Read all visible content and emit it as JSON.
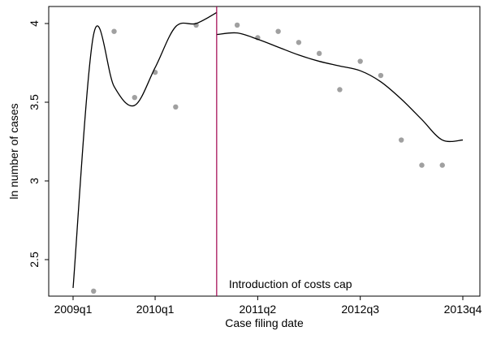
{
  "chart_data": {
    "type": "scatter",
    "xlabel": "Case filing date",
    "ylabel": "ln number of cases",
    "x_axis_type": "quarterly-date",
    "xlim": [
      "2009q1",
      "2013q4"
    ],
    "ylim": [
      2.3,
      4.1
    ],
    "x_ticks": [
      "2009q1",
      "2010q1",
      "2011q2",
      "2012q3",
      "2013q4"
    ],
    "y_ticks": [
      2.5,
      3,
      3.5,
      4
    ],
    "y_tick_labels": [
      "2.5",
      "3",
      "3.5",
      "4"
    ],
    "grid": false,
    "legend": "none",
    "annotation": {
      "text": "Introduction of costs cap",
      "x": "2010q4"
    },
    "series": [
      {
        "kind": "scatter",
        "color": "#a0a0a0",
        "x": [
          "2009q2",
          "2009q3",
          "2009q4",
          "2010q1",
          "2010q2",
          "2010q3",
          "2011q1",
          "2011q2",
          "2011q3",
          "2011q4",
          "2012q1",
          "2012q2",
          "2012q3",
          "2012q4",
          "2013q1",
          "2013q2",
          "2013q3"
        ],
        "y": [
          2.3,
          3.95,
          3.53,
          3.69,
          3.47,
          3.99,
          3.99,
          3.91,
          3.95,
          3.88,
          3.81,
          3.58,
          3.76,
          3.67,
          3.26,
          3.1,
          3.1
        ]
      },
      {
        "kind": "line",
        "color": "#000000",
        "segment": "pre",
        "x": [
          "2009q1",
          "2009q2",
          "2009q3",
          "2009q4",
          "2010q1",
          "2010q2",
          "2010q3",
          "2010q4"
        ],
        "y": [
          2.32,
          3.93,
          3.6,
          3.48,
          3.72,
          3.98,
          4.0,
          4.07
        ]
      },
      {
        "kind": "line",
        "color": "#000000",
        "segment": "post",
        "x": [
          "2010q4",
          "2011q1",
          "2011q2",
          "2011q3",
          "2011q4",
          "2012q1",
          "2012q2",
          "2012q3",
          "2012q4",
          "2013q1",
          "2013q2",
          "2013q3",
          "2013q4"
        ],
        "y": [
          3.93,
          3.94,
          3.9,
          3.85,
          3.8,
          3.76,
          3.73,
          3.7,
          3.63,
          3.52,
          3.39,
          3.26,
          3.26
        ]
      }
    ],
    "cutoff_line": {
      "x": "2010q4",
      "color": "#a0004d"
    }
  }
}
